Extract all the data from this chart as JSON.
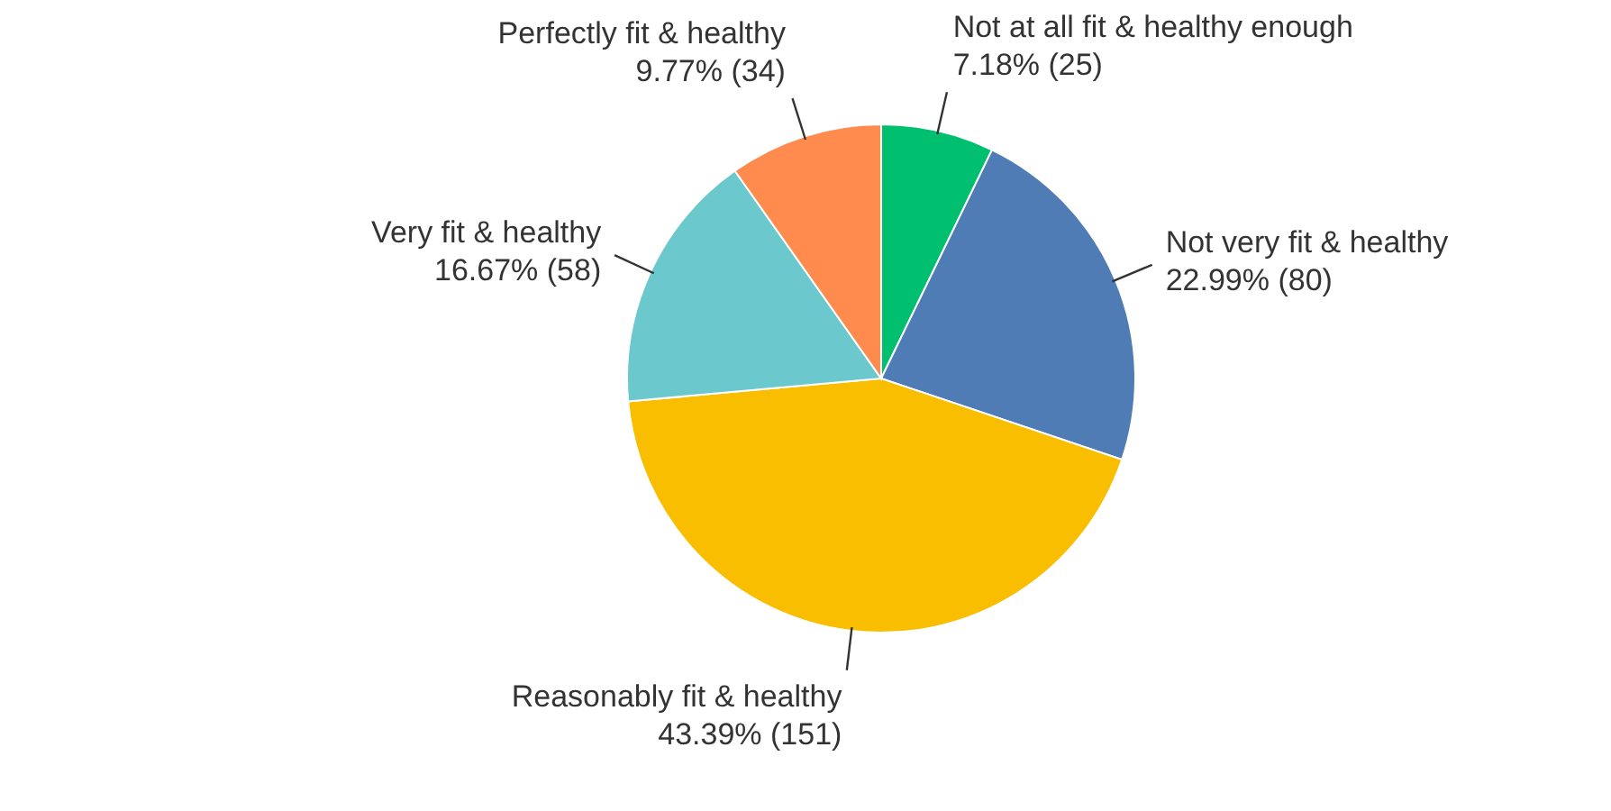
{
  "chart_data": {
    "type": "pie",
    "categories": [
      "Not at all fit & healthy enough",
      "Not very fit & healthy",
      "Reasonably fit & healthy",
      "Very fit & healthy",
      "Perfectly fit & healthy"
    ],
    "values": [
      25,
      80,
      151,
      58,
      34
    ],
    "value_labels": [
      "7.18% (25)",
      "22.99% (80)",
      "43.39% (151)",
      "16.67% (58)",
      "9.77% (34)"
    ],
    "colors": [
      "#00bf6f",
      "#507cb6",
      "#f9be00",
      "#6bc8cd",
      "#ff8b4f"
    ]
  }
}
